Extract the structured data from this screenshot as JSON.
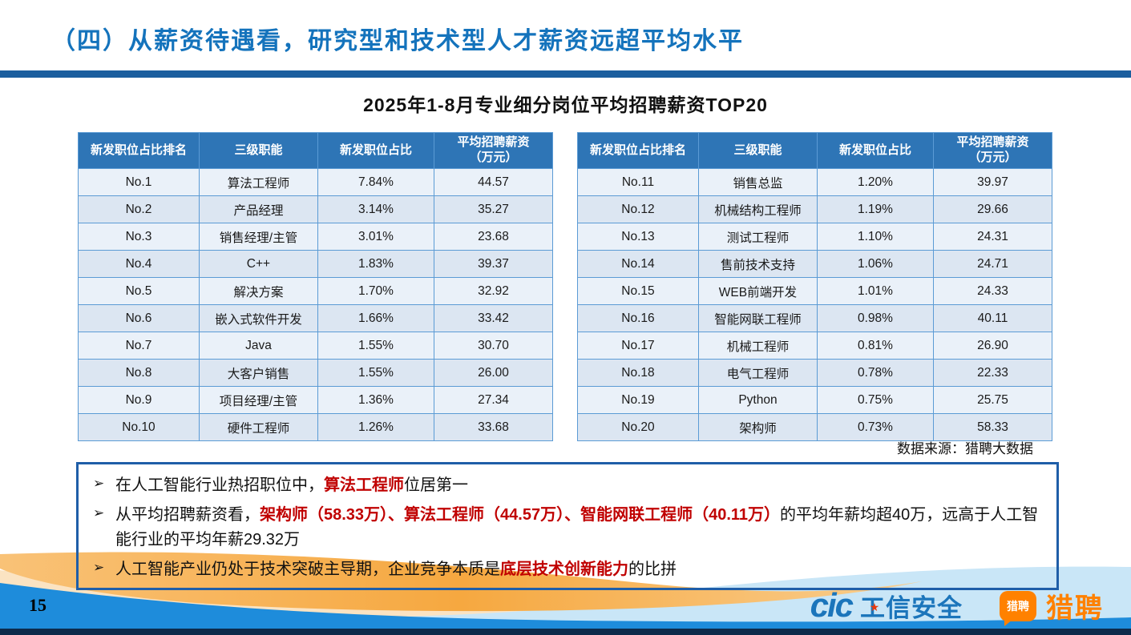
{
  "slide": {
    "title": "（四）从薪资待遇看，研究型和技术型人才薪资远超平均水平",
    "subtitle": "2025年1-8月专业细分岗位平均招聘薪资TOP20",
    "source_note": "数据来源：猎聘大数据",
    "page_number": "15"
  },
  "colors": {
    "title_blue": "#1473BC",
    "divider_blue": "#1B5E9E",
    "table_header_blue": "#2E75B6",
    "table_border_blue": "#5B9BD5",
    "row_light": "#EAF1F9",
    "row_dark": "#DCE6F2",
    "highlight_red": "#C00000",
    "summary_box_border": "#1F5EA8",
    "brand_orange": "#FF8100",
    "wave_blue": "#1E8CDB"
  },
  "tables": [
    {
      "headers": [
        "新发职位占比排名",
        "三级职能",
        "新发职位占比",
        "平均招聘薪资\n（万元）"
      ],
      "rows": [
        [
          "No.1",
          "算法工程师",
          "7.84%",
          "44.57"
        ],
        [
          "No.2",
          "产品经理",
          "3.14%",
          "35.27"
        ],
        [
          "No.3",
          "销售经理/主管",
          "3.01%",
          "23.68"
        ],
        [
          "No.4",
          "C++",
          "1.83%",
          "39.37"
        ],
        [
          "No.5",
          "解决方案",
          "1.70%",
          "32.92"
        ],
        [
          "No.6",
          "嵌入式软件开发",
          "1.66%",
          "33.42"
        ],
        [
          "No.7",
          "Java",
          "1.55%",
          "30.70"
        ],
        [
          "No.8",
          "大客户销售",
          "1.55%",
          "26.00"
        ],
        [
          "No.9",
          "项目经理/主管",
          "1.36%",
          "27.34"
        ],
        [
          "No.10",
          "硬件工程师",
          "1.26%",
          "33.68"
        ]
      ]
    },
    {
      "headers": [
        "新发职位占比排名",
        "三级职能",
        "新发职位占比",
        "平均招聘薪资\n（万元）"
      ],
      "rows": [
        [
          "No.11",
          "销售总监",
          "1.20%",
          "39.97"
        ],
        [
          "No.12",
          "机械结构工程师",
          "1.19%",
          "29.66"
        ],
        [
          "No.13",
          "测试工程师",
          "1.10%",
          "24.31"
        ],
        [
          "No.14",
          "售前技术支持",
          "1.06%",
          "24.71"
        ],
        [
          "No.15",
          "WEB前端开发",
          "1.01%",
          "24.33"
        ],
        [
          "No.16",
          "智能网联工程师",
          "0.98%",
          "40.11"
        ],
        [
          "No.17",
          "机械工程师",
          "0.81%",
          "26.90"
        ],
        [
          "No.18",
          "电气工程师",
          "0.78%",
          "22.33"
        ],
        [
          "No.19",
          "Python",
          "0.75%",
          "25.75"
        ],
        [
          "No.20",
          "架构师",
          "0.73%",
          "58.33"
        ]
      ]
    }
  ],
  "bullet_marker": "➢",
  "bullets": [
    {
      "segments": [
        {
          "text": "在人工智能行业热招职位中，",
          "em": false
        },
        {
          "text": "算法工程师",
          "em": true
        },
        {
          "text": "位居第一",
          "em": false
        }
      ]
    },
    {
      "segments": [
        {
          "text": "从平均招聘薪资看，",
          "em": false
        },
        {
          "text": "架构师（58.33万）、算法工程师（44.57万）、智能网联工程师（40.11万）",
          "em": true
        },
        {
          "text": "的平均年薪均超40万，远高于人工智能行业的平均年薪29.32万",
          "em": false
        }
      ]
    },
    {
      "segments": [
        {
          "text": "人工智能产业仍处于技术突破主导期，企业竞争本质是",
          "em": false
        },
        {
          "text": "底层技术创新能力",
          "em": true
        },
        {
          "text": "的比拼",
          "em": false
        }
      ]
    }
  ],
  "footer": {
    "cic_logo_text": "cic",
    "cic_star_glyph": "★",
    "cic_logo_label": "工信安全",
    "liepin_badge_text": "猎聘",
    "liepin_logo_label": "猎聘"
  }
}
